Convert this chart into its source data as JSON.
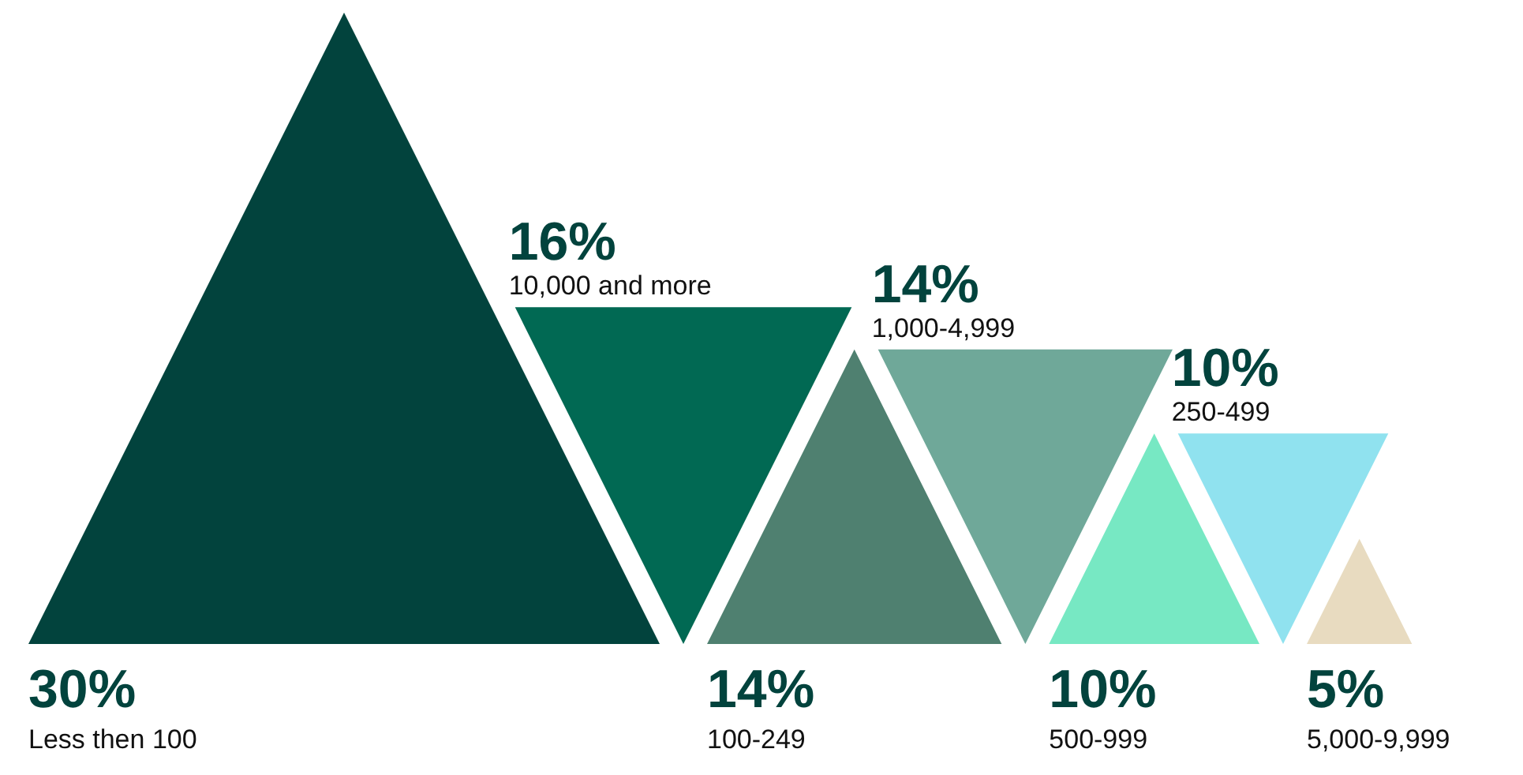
{
  "chart_data": {
    "type": "other",
    "categories": [
      "Less then 100",
      "10,000 and more",
      "100-249",
      "1,000-4,999",
      "500-999",
      "250-499",
      "5,000-9,999"
    ],
    "values": [
      30,
      16,
      14,
      14,
      10,
      10,
      5
    ],
    "value_labels": [
      "30%",
      "16%",
      "14%",
      "14%",
      "10%",
      "10%",
      "5%"
    ],
    "colors": [
      "#02433d",
      "#016953",
      "#4f8070",
      "#6fa899",
      "#77e8c3",
      "#90e2ef",
      "#e8dbc0"
    ]
  }
}
